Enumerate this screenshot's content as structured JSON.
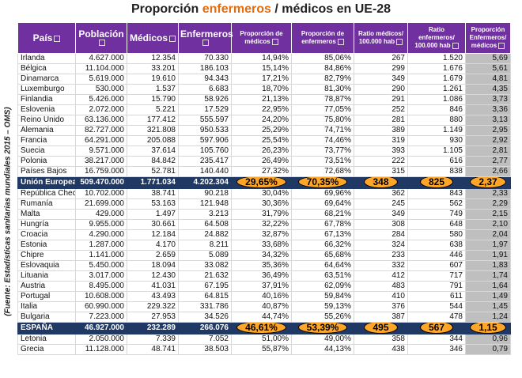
{
  "title": {
    "before": "Proporción",
    "highlight": "enfermeros",
    "after": "/ médicos en UE-28"
  },
  "source": "(Fuente: Estadísticas sanitarias mundiales 2015 – OMS)",
  "table": {
    "header": [
      "País",
      "Población",
      "Médicos",
      "Enfermeros",
      "Proporción de médicos",
      "Proporción de enfermeros",
      "Ratio médicos/ 100.000 hab",
      "Ratio enfermeros/ 100.000 hab",
      "Proporción Enfermeros/ médicos"
    ],
    "rows": [
      [
        "Irlanda",
        "4.627.000",
        "12.354",
        "70.330",
        "14,94%",
        "85,06%",
        "267",
        "1.520",
        "5,69"
      ],
      [
        "Bélgica",
        "11.104.000",
        "33.201",
        "186.103",
        "15,14%",
        "84,86%",
        "299",
        "1.676",
        "5,61"
      ],
      [
        "Dinamarca",
        "5.619.000",
        "19.610",
        "94.343",
        "17,21%",
        "82,79%",
        "349",
        "1.679",
        "4,81"
      ],
      [
        "Luxemburgo",
        "530.000",
        "1.537",
        "6.683",
        "18,70%",
        "81,30%",
        "290",
        "1.261",
        "4,35"
      ],
      [
        "Finlandia",
        "5.426.000",
        "15.790",
        "58.926",
        "21,13%",
        "78,87%",
        "291",
        "1.086",
        "3,73"
      ],
      [
        "Eslovenia",
        "2.072.000",
        "5.221",
        "17.529",
        "22,95%",
        "77,05%",
        "252",
        "846",
        "3,36"
      ],
      [
        "Reino Unido",
        "63.136.000",
        "177.412",
        "555.597",
        "24,20%",
        "75,80%",
        "281",
        "880",
        "3,13"
      ],
      [
        "Alemania",
        "82.727.000",
        "321.808",
        "950.533",
        "25,29%",
        "74,71%",
        "389",
        "1.149",
        "2,95"
      ],
      [
        "Francia",
        "64.291.000",
        "205.088",
        "597.906",
        "25,54%",
        "74,46%",
        "319",
        "930",
        "2,92"
      ],
      [
        "Suecia",
        "9.571.000",
        "37.614",
        "105.760",
        "26,23%",
        "73,77%",
        "393",
        "1.105",
        "2,81"
      ],
      [
        "Polonia",
        "38.217.000",
        "84.842",
        "235.417",
        "26,49%",
        "73,51%",
        "222",
        "616",
        "2,77"
      ],
      [
        "Países Bajos",
        "16.759.000",
        "52.781",
        "140.440",
        "27,32%",
        "72,68%",
        "315",
        "838",
        "2,66"
      ],
      [
        "Unión Europea",
        "509.470.000",
        "1.771.034",
        "4.202.304",
        "29,65%",
        "70,35%",
        "348",
        "825",
        "2,37"
      ],
      [
        "República Checa",
        "10.702.000",
        "38.741",
        "90.218",
        "30,04%",
        "69,96%",
        "362",
        "843",
        "2,33"
      ],
      [
        "Rumanía",
        "21.699.000",
        "53.163",
        "121.948",
        "30,36%",
        "69,64%",
        "245",
        "562",
        "2,29"
      ],
      [
        "Malta",
        "429.000",
        "1.497",
        "3.213",
        "31,79%",
        "68,21%",
        "349",
        "749",
        "2,15"
      ],
      [
        "Hungría",
        "9.955.000",
        "30.661",
        "64.508",
        "32,22%",
        "67,78%",
        "308",
        "648",
        "2,10"
      ],
      [
        "Croacia",
        "4.290.000",
        "12.184",
        "24.882",
        "32,87%",
        "67,13%",
        "284",
        "580",
        "2,04"
      ],
      [
        "Estonia",
        "1.287.000",
        "4.170",
        "8.211",
        "33,68%",
        "66,32%",
        "324",
        "638",
        "1,97"
      ],
      [
        "Chipre",
        "1.141.000",
        "2.659",
        "5.089",
        "34,32%",
        "65,68%",
        "233",
        "446",
        "1,91"
      ],
      [
        "Eslovaquia",
        "5.450.000",
        "18.094",
        "33.082",
        "35,36%",
        "64,64%",
        "332",
        "607",
        "1,83"
      ],
      [
        "Lituania",
        "3.017.000",
        "12.430",
        "21.632",
        "36,49%",
        "63,51%",
        "412",
        "717",
        "1,74"
      ],
      [
        "Austria",
        "8.495.000",
        "41.031",
        "67.195",
        "37,91%",
        "62,09%",
        "483",
        "791",
        "1,64"
      ],
      [
        "Portugal",
        "10.608.000",
        "43.493",
        "64.815",
        "40,16%",
        "59,84%",
        "410",
        "611",
        "1,49"
      ],
      [
        "Italia",
        "60.990.000",
        "229.322",
        "331.786",
        "40,87%",
        "59,13%",
        "376",
        "544",
        "1,45"
      ],
      [
        "Bulgaria",
        "7.223.000",
        "27.953",
        "34.526",
        "44,74%",
        "55,26%",
        "387",
        "478",
        "1,24"
      ],
      [
        "ESPAÑA",
        "46.927.000",
        "232.289",
        "266.076",
        "46,61%",
        "53,39%",
        "495",
        "567",
        "1,15"
      ],
      [
        "Letonia",
        "2.050.000",
        "7.339",
        "7.052",
        "51,00%",
        "49,00%",
        "358",
        "344",
        "0,96"
      ],
      [
        "Grecia",
        "11.128.000",
        "48.741",
        "38.503",
        "55,87%",
        "44,13%",
        "438",
        "346",
        "0,79"
      ]
    ]
  }
}
